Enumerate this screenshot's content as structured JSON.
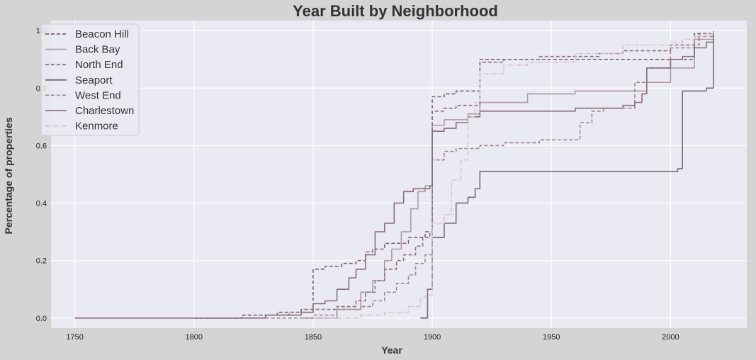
{
  "chart_data": {
    "type": "line",
    "title": "Year Built by Neighborhood",
    "xlabel": "Year",
    "ylabel": "Percentage of properties",
    "xlim": [
      1740,
      2032
    ],
    "ylim": [
      -0.035,
      1.035
    ],
    "xticks": [
      1750,
      1800,
      1850,
      1900,
      1950,
      2000
    ],
    "yticks": [
      0.0,
      0.2,
      0.4,
      0.6,
      0.8,
      1.0
    ],
    "grid": true,
    "legend_position": "upper-left",
    "series": [
      {
        "name": "Beacon Hill",
        "color": "#7a6470",
        "dash": "dashed",
        "x": [
          1800,
          1820,
          1835,
          1845,
          1850,
          1855,
          1862,
          1868,
          1872,
          1875,
          1880,
          1885,
          1890,
          1897,
          1900,
          1905,
          1910,
          1920,
          1940,
          1960,
          2000,
          2010,
          2018
        ],
        "y": [
          0.0,
          0.01,
          0.02,
          0.03,
          0.17,
          0.18,
          0.19,
          0.2,
          0.23,
          0.24,
          0.26,
          0.26,
          0.28,
          0.3,
          0.77,
          0.78,
          0.79,
          0.9,
          0.9,
          0.9,
          0.9,
          0.99,
          1.0
        ]
      },
      {
        "name": "Back Bay",
        "color": "#b09aa4",
        "dash": "solid",
        "x": [
          1845,
          1860,
          1870,
          1875,
          1880,
          1883,
          1887,
          1891,
          1894,
          1897,
          1900,
          1905,
          1915,
          1920,
          1940,
          1960,
          1990,
          2000,
          2010,
          2018
        ],
        "y": [
          0.0,
          0.03,
          0.09,
          0.13,
          0.2,
          0.24,
          0.3,
          0.38,
          0.44,
          0.46,
          0.67,
          0.69,
          0.71,
          0.75,
          0.78,
          0.79,
          0.82,
          0.87,
          0.97,
          1.0
        ]
      },
      {
        "name": "North End",
        "color": "#8e6f7c",
        "dash": "dashed",
        "x": [
          1800,
          1825,
          1840,
          1850,
          1860,
          1868,
          1872,
          1876,
          1880,
          1885,
          1888,
          1893,
          1896,
          1899,
          1900,
          1905,
          1910,
          1920,
          1930,
          1945,
          1955,
          1965,
          1970,
          1980,
          2000,
          2012,
          2018
        ],
        "y": [
          0.0,
          0.01,
          0.02,
          0.03,
          0.04,
          0.06,
          0.09,
          0.13,
          0.17,
          0.2,
          0.22,
          0.25,
          0.28,
          0.3,
          0.72,
          0.73,
          0.74,
          0.89,
          0.9,
          0.91,
          0.91,
          0.91,
          0.92,
          0.93,
          0.95,
          0.99,
          1.0
        ]
      },
      {
        "name": "Seaport",
        "color": "#7d6a74",
        "dash": "solid",
        "x": [
          1895,
          1898,
          1900,
          1905,
          1910,
          1915,
          1918,
          1920,
          1940,
          1960,
          1980,
          2000,
          2003,
          2005,
          2010,
          2013,
          2015,
          2018
        ],
        "y": [
          0.0,
          0.1,
          0.28,
          0.33,
          0.4,
          0.42,
          0.45,
          0.51,
          0.51,
          0.51,
          0.51,
          0.51,
          0.52,
          0.79,
          0.79,
          0.79,
          0.8,
          1.0
        ]
      },
      {
        "name": "West End",
        "color": "#a18791",
        "dash": "dashed",
        "x": [
          1830,
          1850,
          1860,
          1870,
          1875,
          1880,
          1885,
          1890,
          1893,
          1897,
          1900,
          1905,
          1910,
          1920,
          1930,
          1945,
          1955,
          1962,
          1967,
          1972,
          1985,
          1990,
          2000,
          2010,
          2018
        ],
        "y": [
          0.0,
          0.01,
          0.03,
          0.04,
          0.06,
          0.09,
          0.12,
          0.15,
          0.19,
          0.22,
          0.55,
          0.58,
          0.59,
          0.6,
          0.61,
          0.62,
          0.62,
          0.68,
          0.72,
          0.73,
          0.82,
          0.87,
          0.94,
          0.98,
          1.0
        ]
      },
      {
        "name": "Charlestown",
        "color": "#8a6e7b",
        "dash": "solid",
        "x": [
          1750,
          1800,
          1830,
          1845,
          1850,
          1855,
          1860,
          1865,
          1868,
          1872,
          1876,
          1880,
          1884,
          1888,
          1892,
          1896,
          1899,
          1900,
          1905,
          1910,
          1915,
          1920,
          1940,
          1960,
          1970,
          1980,
          1985,
          1988,
          1990,
          2000,
          2005,
          2010,
          2015,
          2018
        ],
        "y": [
          0.0,
          0.0,
          0.01,
          0.02,
          0.05,
          0.06,
          0.1,
          0.14,
          0.17,
          0.22,
          0.3,
          0.33,
          0.4,
          0.44,
          0.45,
          0.45,
          0.46,
          0.65,
          0.66,
          0.68,
          0.7,
          0.72,
          0.72,
          0.73,
          0.73,
          0.74,
          0.75,
          0.78,
          0.87,
          0.9,
          0.91,
          0.94,
          0.96,
          1.0
        ]
      },
      {
        "name": "Kenmore",
        "color": "#d4c4cc",
        "dash": "dashdot",
        "x": [
          1850,
          1870,
          1880,
          1890,
          1895,
          1897,
          1900,
          1905,
          1908,
          1912,
          1915,
          1918,
          1920,
          1930,
          1940,
          1960,
          1980,
          2000,
          2005,
          2010,
          2015,
          2018
        ],
        "y": [
          0.0,
          0.01,
          0.02,
          0.04,
          0.07,
          0.08,
          0.33,
          0.36,
          0.48,
          0.55,
          0.7,
          0.75,
          0.85,
          0.88,
          0.89,
          0.92,
          0.95,
          0.96,
          0.97,
          0.98,
          0.99,
          1.0
        ]
      }
    ]
  }
}
